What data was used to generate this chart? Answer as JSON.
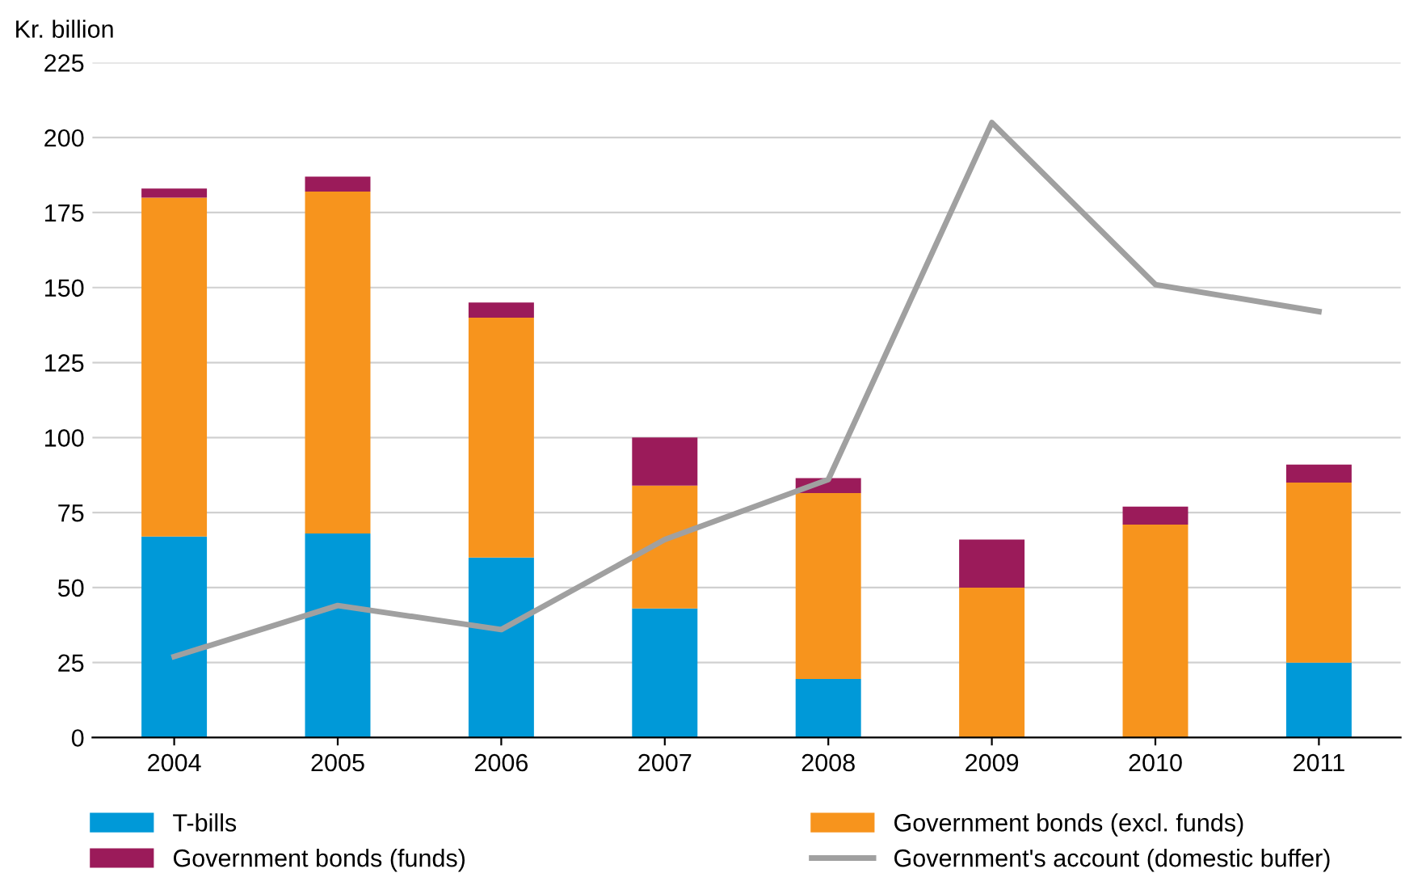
{
  "chart_data": {
    "type": "bar",
    "stacked": true,
    "ylabel": "Kr. billion",
    "categories": [
      "2004",
      "2005",
      "2006",
      "2007",
      "2008",
      "2009",
      "2010",
      "2011"
    ],
    "series": [
      {
        "name": "T-bills",
        "color": "#0099d8",
        "values": [
          67,
          68,
          60,
          43,
          19.5,
          0,
          0,
          25
        ]
      },
      {
        "name": "Government bonds (excl. funds)",
        "color": "#f7941d",
        "values": [
          113,
          114,
          80,
          41,
          62,
          50,
          71,
          60
        ]
      },
      {
        "name": "Government bonds (funds)",
        "color": "#9b1b5a",
        "values": [
          3,
          5,
          5,
          16,
          5,
          16,
          6,
          6
        ]
      },
      {
        "name": "Government's account (domestic buffer)",
        "color": "#a0a0a0",
        "type": "line",
        "values": [
          27,
          44,
          36,
          66,
          86,
          205,
          151,
          142
        ]
      }
    ],
    "ylim": [
      0,
      225
    ],
    "yticks": [
      0,
      25,
      50,
      75,
      100,
      125,
      150,
      175,
      200,
      225
    ],
    "grid": "y",
    "legend": "bottom",
    "marker": "none",
    "line_style": "solid"
  }
}
